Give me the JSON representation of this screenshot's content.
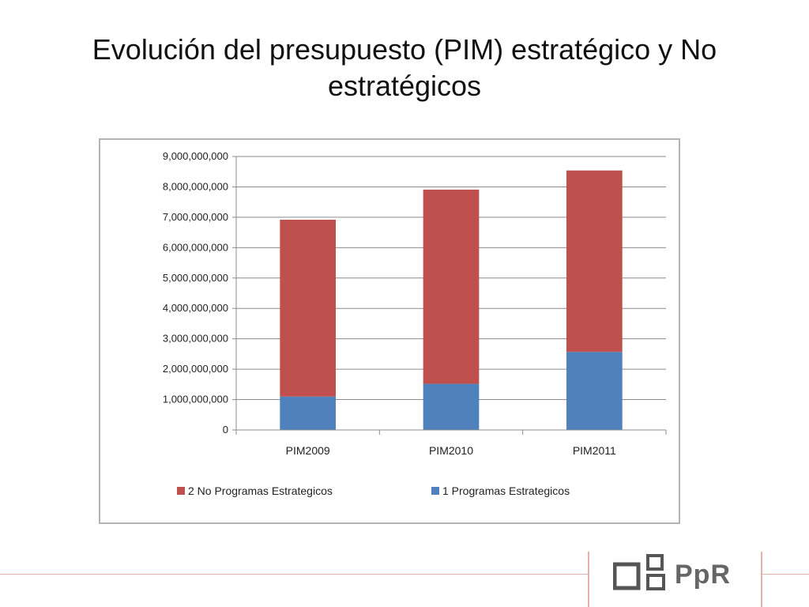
{
  "slide": {
    "title": "Evolución del presupuesto (PIM) estratégico y No estratégicos"
  },
  "chart_data": {
    "type": "bar",
    "stacked": true,
    "categories": [
      "PIM2009",
      "PIM2010",
      "PIM2011"
    ],
    "series": [
      {
        "name": "1 Programas Estrategicos",
        "color": "#4f81bd",
        "values": [
          1100000000,
          1520000000,
          2570000000
        ]
      },
      {
        "name": "2 No Programas Estrategicos",
        "color": "#c0504d",
        "values": [
          5820000000,
          6390000000,
          5970000000
        ]
      }
    ],
    "ylim": [
      0,
      9000000000
    ],
    "yticks": [
      0,
      1000000000,
      2000000000,
      3000000000,
      4000000000,
      5000000000,
      6000000000,
      7000000000,
      8000000000,
      9000000000
    ],
    "ytick_labels": [
      "0",
      "1,000,000,000",
      "2,000,000,000",
      "3,000,000,000",
      "4,000,000,000",
      "5,000,000,000",
      "6,000,000,000",
      "7,000,000,000",
      "8,000,000,000",
      "9,000,000,000"
    ],
    "grid": true,
    "legend_position": "bottom",
    "legend_order": [
      1,
      0
    ],
    "title": "",
    "xlabel": "",
    "ylabel": ""
  },
  "footer": {
    "logo_text": "PpR",
    "line_color": "#e8b0ad"
  }
}
